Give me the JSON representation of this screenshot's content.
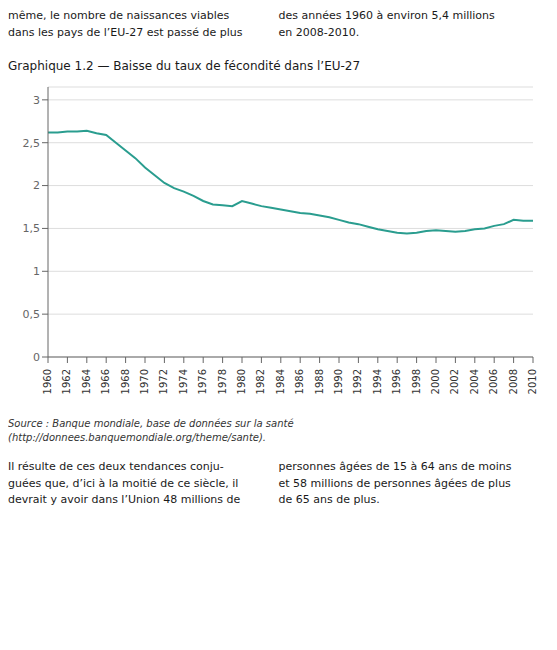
{
  "chart_data": {
    "type": "line",
    "title": "Graphique 1.2 — Baisse du taux de fécondité dans l’EU-27",
    "x": [
      1960,
      1961,
      1962,
      1963,
      1964,
      1965,
      1966,
      1967,
      1968,
      1969,
      1970,
      1971,
      1972,
      1973,
      1974,
      1975,
      1976,
      1977,
      1978,
      1979,
      1980,
      1981,
      1982,
      1983,
      1984,
      1985,
      1986,
      1987,
      1988,
      1989,
      1990,
      1991,
      1992,
      1993,
      1994,
      1995,
      1996,
      1997,
      1998,
      1999,
      2000,
      2001,
      2002,
      2003,
      2004,
      2005,
      2006,
      2007,
      2008,
      2009,
      2010
    ],
    "values": [
      2.62,
      2.62,
      2.63,
      2.63,
      2.64,
      2.61,
      2.59,
      2.5,
      2.41,
      2.32,
      2.21,
      2.12,
      2.03,
      1.97,
      1.93,
      1.88,
      1.82,
      1.78,
      1.77,
      1.76,
      1.82,
      1.79,
      1.76,
      1.74,
      1.72,
      1.7,
      1.68,
      1.67,
      1.65,
      1.63,
      1.6,
      1.57,
      1.55,
      1.52,
      1.49,
      1.47,
      1.45,
      1.44,
      1.45,
      1.47,
      1.48,
      1.47,
      1.46,
      1.47,
      1.49,
      1.5,
      1.53,
      1.55,
      1.6,
      1.59,
      1.59
    ],
    "color": "#2a9d8f",
    "xlim": [
      1960,
      2010
    ],
    "xticks": [
      1960,
      1962,
      1964,
      1966,
      1968,
      1970,
      1972,
      1974,
      1976,
      1978,
      1980,
      1982,
      1984,
      1986,
      1988,
      1990,
      1992,
      1994,
      1996,
      1998,
      2000,
      2002,
      2004,
      2006,
      2008,
      2010
    ],
    "ylim": [
      0,
      3.15
    ],
    "yticks": [
      0,
      {
        "value": 0.5,
        "label": "0,5"
      },
      1,
      {
        "value": 1.5,
        "label": "1,5"
      },
      2,
      {
        "value": 2.5,
        "label": "2,5"
      },
      3
    ],
    "grid": true,
    "annotations": [
      "même, le nombre de naissances viables",
      "des années 1960 à environ 5,4 millions",
      "dans les pays de l’EU-27 est passé de plus",
      "en 2008-2010.",
      "Source : Banque mondiale, base de données sur la santé (http://donnees.banquemondiale.org/theme/sante).",
      "Il résulte de ces deux tendances conju-\nguées que, d’ici à la moitié de ce siècle, il\ndevrait y avoir dans l’Union 48 millions de",
      "personnes âgées de 15 à 64 ans de moins\net 58 millions de personnes âgées de plus\nde 65 ans de plus."
    ]
  }
}
